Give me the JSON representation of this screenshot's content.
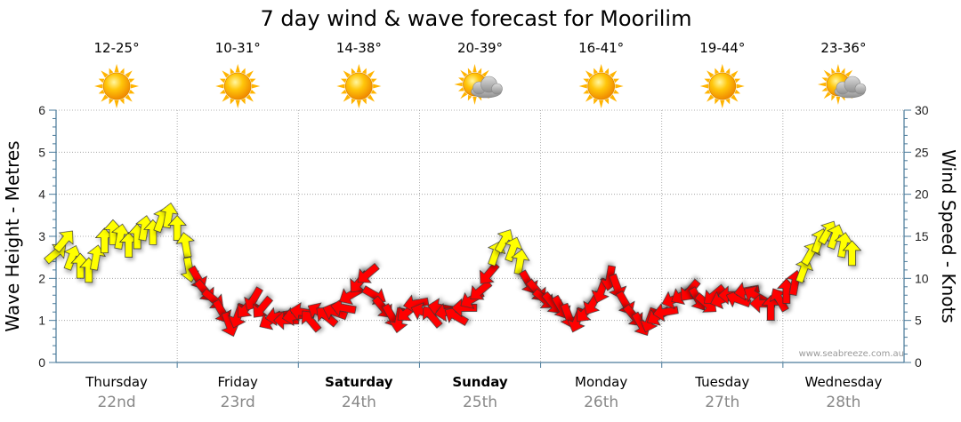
{
  "chart_data": {
    "type": "wind-wave-forecast",
    "title": "7 day wind & wave forecast for Moorilim",
    "ylabel_left": "Wave Height - Metres",
    "ylabel_right": "Wind Speed - Knots",
    "ylim_left": [
      0,
      6
    ],
    "ylim_right": [
      0,
      30
    ],
    "left_ticks": [
      "0",
      "1",
      "2",
      "3",
      "4",
      "5",
      "6"
    ],
    "right_ticks": [
      "0",
      "5",
      "10",
      "15",
      "20",
      "25",
      "30"
    ],
    "credit": "www.seabreeze.com.au",
    "colors": {
      "calm": "#ffff00",
      "strong": "#ff0000",
      "outline": "#333333",
      "grid": "#999999",
      "axis": "#4a7a9a",
      "sun": "#ffb400",
      "cloud": "#b0b0b0"
    },
    "days": [
      {
        "day": "Thursday",
        "date": "22nd",
        "temp": "12-25°",
        "weather": "sunny",
        "bold": false
      },
      {
        "day": "Friday",
        "date": "23rd",
        "temp": "10-31°",
        "weather": "sunny",
        "bold": false
      },
      {
        "day": "Saturday",
        "date": "24th",
        "temp": "14-38°",
        "weather": "sunny",
        "bold": true
      },
      {
        "day": "Sunday",
        "date": "25th",
        "temp": "20-39°",
        "weather": "partly-cloudy",
        "bold": true
      },
      {
        "day": "Monday",
        "date": "26th",
        "temp": "16-41°",
        "weather": "sunny",
        "bold": false
      },
      {
        "day": "Tuesday",
        "date": "27th",
        "temp": "19-44°",
        "weather": "sunny",
        "bold": false
      },
      {
        "day": "Wednesday",
        "date": "28th",
        "temp": "23-36°",
        "weather": "partly-cloudy",
        "bold": false
      }
    ],
    "x_range_days": [
      0,
      7
    ],
    "series": [
      {
        "name": "Wind",
        "units": "knots",
        "threshold_knots": 11,
        "points": [
          {
            "t": 0.0,
            "speed": 13.0,
            "dir": 230
          },
          {
            "t": 0.07,
            "speed": 14.5,
            "dir": 220
          },
          {
            "t": 0.13,
            "speed": 12.5,
            "dir": 200
          },
          {
            "t": 0.2,
            "speed": 11.5,
            "dir": 180
          },
          {
            "t": 0.27,
            "speed": 11.0,
            "dir": 180
          },
          {
            "t": 0.33,
            "speed": 12.5,
            "dir": 190
          },
          {
            "t": 0.4,
            "speed": 14.5,
            "dir": 180
          },
          {
            "t": 0.47,
            "speed": 15.5,
            "dir": 180
          },
          {
            "t": 0.53,
            "speed": 15.0,
            "dir": 190
          },
          {
            "t": 0.6,
            "speed": 14.0,
            "dir": 180
          },
          {
            "t": 0.67,
            "speed": 15.0,
            "dir": 180
          },
          {
            "t": 0.73,
            "speed": 16.0,
            "dir": 190
          },
          {
            "t": 0.8,
            "speed": 15.5,
            "dir": 180
          },
          {
            "t": 0.87,
            "speed": 17.0,
            "dir": 200
          },
          {
            "t": 0.93,
            "speed": 17.5,
            "dir": 190
          },
          {
            "t": 1.0,
            "speed": 16.0,
            "dir": 180
          },
          {
            "t": 1.07,
            "speed": 14.0,
            "dir": 170
          },
          {
            "t": 1.1,
            "speed": 11.0,
            "dir": 350
          },
          {
            "t": 1.17,
            "speed": 10.0,
            "dir": 330
          },
          {
            "t": 1.23,
            "speed": 8.5,
            "dir": 320
          },
          {
            "t": 1.3,
            "speed": 7.5,
            "dir": 310
          },
          {
            "t": 1.37,
            "speed": 6.0,
            "dir": 330
          },
          {
            "t": 1.43,
            "speed": 4.5,
            "dir": 340
          },
          {
            "t": 1.5,
            "speed": 5.5,
            "dir": 20
          },
          {
            "t": 1.57,
            "speed": 6.5,
            "dir": 40
          },
          {
            "t": 1.63,
            "speed": 7.5,
            "dir": 30
          },
          {
            "t": 1.7,
            "speed": 6.5,
            "dir": 40
          },
          {
            "t": 1.77,
            "speed": 5.0,
            "dir": 60
          },
          {
            "t": 1.83,
            "speed": 5.5,
            "dir": 80
          },
          {
            "t": 1.9,
            "speed": 5.0,
            "dir": 90
          },
          {
            "t": 1.97,
            "speed": 5.5,
            "dir": 80
          },
          {
            "t": 2.03,
            "speed": 6.0,
            "dir": 100
          },
          {
            "t": 2.1,
            "speed": 5.0,
            "dir": 140
          },
          {
            "t": 2.17,
            "speed": 6.0,
            "dir": 120
          },
          {
            "t": 2.23,
            "speed": 5.5,
            "dir": 130
          },
          {
            "t": 2.3,
            "speed": 6.0,
            "dir": 110
          },
          {
            "t": 2.37,
            "speed": 6.5,
            "dir": 100
          },
          {
            "t": 2.43,
            "speed": 8.0,
            "dir": 60
          },
          {
            "t": 2.5,
            "speed": 9.5,
            "dir": 40
          },
          {
            "t": 2.57,
            "speed": 10.5,
            "dir": 50
          },
          {
            "t": 2.63,
            "speed": 8.0,
            "dir": 300
          },
          {
            "t": 2.7,
            "speed": 6.5,
            "dir": 320
          },
          {
            "t": 2.77,
            "speed": 5.5,
            "dir": 330
          },
          {
            "t": 2.83,
            "speed": 5.0,
            "dir": 10
          },
          {
            "t": 2.9,
            "speed": 6.0,
            "dir": 50
          },
          {
            "t": 2.97,
            "speed": 7.0,
            "dir": 80
          },
          {
            "t": 3.03,
            "speed": 6.0,
            "dir": 110
          },
          {
            "t": 3.1,
            "speed": 5.5,
            "dir": 140
          },
          {
            "t": 3.17,
            "speed": 6.5,
            "dir": 100
          },
          {
            "t": 3.23,
            "speed": 6.0,
            "dir": 80
          },
          {
            "t": 3.3,
            "speed": 5.5,
            "dir": 120
          },
          {
            "t": 3.37,
            "speed": 6.5,
            "dir": 90
          },
          {
            "t": 3.43,
            "speed": 7.5,
            "dir": 60
          },
          {
            "t": 3.5,
            "speed": 8.5,
            "dir": 50
          },
          {
            "t": 3.57,
            "speed": 10.5,
            "dir": 40
          },
          {
            "t": 3.63,
            "speed": 13.0,
            "dir": 200
          },
          {
            "t": 3.7,
            "speed": 14.5,
            "dir": 210
          },
          {
            "t": 3.77,
            "speed": 13.5,
            "dir": 200
          },
          {
            "t": 3.83,
            "speed": 12.0,
            "dir": 190
          },
          {
            "t": 3.9,
            "speed": 9.5,
            "dir": 330
          },
          {
            "t": 3.97,
            "speed": 8.5,
            "dir": 320
          },
          {
            "t": 4.03,
            "speed": 7.5,
            "dir": 310
          },
          {
            "t": 4.1,
            "speed": 7.0,
            "dir": 320
          },
          {
            "t": 4.17,
            "speed": 6.5,
            "dir": 330
          },
          {
            "t": 4.23,
            "speed": 5.5,
            "dir": 340
          },
          {
            "t": 4.3,
            "speed": 5.0,
            "dir": 20
          },
          {
            "t": 4.37,
            "speed": 6.0,
            "dir": 40
          },
          {
            "t": 4.43,
            "speed": 7.0,
            "dir": 30
          },
          {
            "t": 4.5,
            "speed": 8.5,
            "dir": 20
          },
          {
            "t": 4.57,
            "speed": 10.0,
            "dir": 10
          },
          {
            "t": 4.63,
            "speed": 9.0,
            "dir": 340
          },
          {
            "t": 4.7,
            "speed": 7.0,
            "dir": 330
          },
          {
            "t": 4.77,
            "speed": 5.5,
            "dir": 320
          },
          {
            "t": 4.83,
            "speed": 4.5,
            "dir": 330
          },
          {
            "t": 4.9,
            "speed": 5.0,
            "dir": 20
          },
          {
            "t": 4.97,
            "speed": 5.5,
            "dir": 60
          },
          {
            "t": 5.03,
            "speed": 6.0,
            "dir": 80
          },
          {
            "t": 5.1,
            "speed": 7.5,
            "dir": 70
          },
          {
            "t": 5.17,
            "speed": 8.0,
            "dir": 60
          },
          {
            "t": 5.23,
            "speed": 8.5,
            "dir": 40
          },
          {
            "t": 5.3,
            "speed": 7.5,
            "dir": 330
          },
          {
            "t": 5.37,
            "speed": 7.0,
            "dir": 310
          },
          {
            "t": 5.43,
            "speed": 8.0,
            "dir": 50
          },
          {
            "t": 5.5,
            "speed": 7.5,
            "dir": 70
          },
          {
            "t": 5.57,
            "speed": 8.0,
            "dir": 90
          },
          {
            "t": 5.63,
            "speed": 7.5,
            "dir": 110
          },
          {
            "t": 5.7,
            "speed": 8.5,
            "dir": 80
          },
          {
            "t": 5.77,
            "speed": 8.0,
            "dir": 120
          },
          {
            "t": 5.83,
            "speed": 7.0,
            "dir": 90
          },
          {
            "t": 5.9,
            "speed": 6.5,
            "dir": 180
          },
          {
            "t": 5.97,
            "speed": 7.5,
            "dir": 150
          },
          {
            "t": 6.03,
            "speed": 8.5,
            "dir": 180
          },
          {
            "t": 6.1,
            "speed": 9.5,
            "dir": 190
          },
          {
            "t": 6.17,
            "speed": 11.0,
            "dir": 200
          },
          {
            "t": 6.23,
            "speed": 13.0,
            "dir": 210
          },
          {
            "t": 6.3,
            "speed": 14.5,
            "dir": 200
          },
          {
            "t": 6.37,
            "speed": 15.5,
            "dir": 210
          },
          {
            "t": 6.43,
            "speed": 15.0,
            "dir": 200
          },
          {
            "t": 6.5,
            "speed": 14.0,
            "dir": 190
          },
          {
            "t": 6.57,
            "speed": 13.0,
            "dir": 180
          }
        ]
      }
    ]
  }
}
